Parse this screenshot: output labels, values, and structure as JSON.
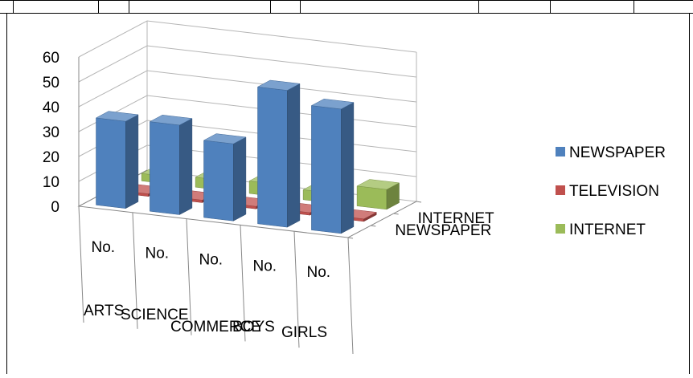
{
  "chart_data": {
    "type": "bar",
    "subtype": "3d-clustered-column",
    "categories": [
      "ARTS",
      "SCIENCE",
      "COMMERCE",
      "BOYS",
      "GIRLS"
    ],
    "subcategory_label": "No.",
    "depth_labels": [
      "NEWSPAPER",
      "INTERNET"
    ],
    "series": [
      {
        "name": "NEWSPAPER",
        "color": "#4F81BD",
        "values": [
          35,
          36,
          31,
          55,
          50
        ]
      },
      {
        "name": "TELEVISION",
        "color": "#C0504D",
        "values": [
          1,
          1,
          1,
          1,
          1
        ]
      },
      {
        "name": "INTERNET",
        "color": "#9BBB59",
        "values": [
          3,
          4,
          5,
          4,
          8
        ]
      }
    ],
    "y_ticks": [
      0,
      10,
      20,
      30,
      40,
      50,
      60
    ],
    "ylim": [
      0,
      60
    ],
    "grid": true,
    "legend_position": "right"
  }
}
